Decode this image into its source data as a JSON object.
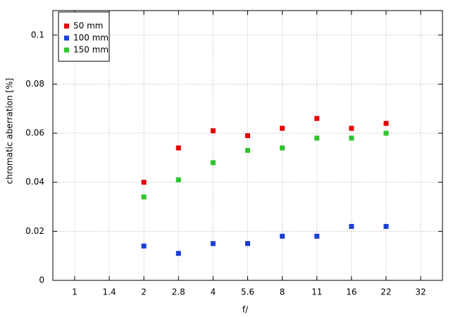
{
  "chart_data": {
    "type": "scatter",
    "x_label": "f/",
    "y_label": "chromatic  aberration [%]",
    "categories": [
      "1",
      "1.4",
      "2",
      "2.8",
      "4",
      "5.6",
      "8",
      "11",
      "16",
      "22",
      "32"
    ],
    "series": [
      {
        "name": "50 mm",
        "color": "#e50000",
        "values": [
          null,
          null,
          0.04,
          0.054,
          0.061,
          0.059,
          0.062,
          0.066,
          0.062,
          0.064,
          null
        ]
      },
      {
        "name": "100 mm",
        "color": "#1a3fd6",
        "values": [
          null,
          null,
          0.014,
          0.011,
          0.015,
          0.015,
          0.018,
          0.018,
          0.022,
          0.022,
          null
        ]
      },
      {
        "name": "150 mm",
        "color": "#2ec42e",
        "values": [
          null,
          null,
          0.034,
          0.041,
          0.048,
          0.053,
          0.054,
          0.058,
          0.058,
          0.06,
          null
        ]
      }
    ],
    "ylim": [
      0,
      0.11
    ],
    "yticks": [
      0,
      0.02,
      0.04,
      0.06,
      0.08,
      0.1
    ],
    "grid": true,
    "legend": "upper-left"
  }
}
